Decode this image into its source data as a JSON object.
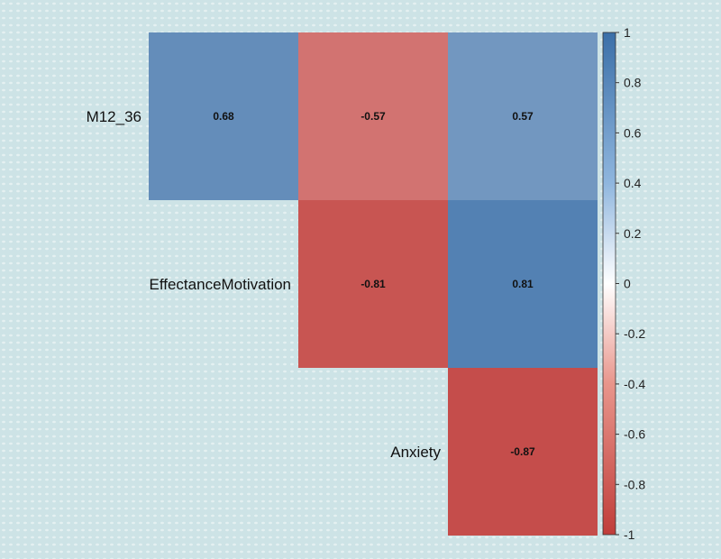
{
  "chart_data": {
    "type": "heatmap",
    "title": "",
    "variables": [
      "M12_36",
      "EffectanceMotivation",
      "Anxiety"
    ],
    "columns": [
      "",
      "",
      ""
    ],
    "layout": "upper-triangle",
    "cells": [
      {
        "row": "M12_36",
        "col": 0,
        "value": 0.68
      },
      {
        "row": "M12_36",
        "col": 1,
        "value": -0.57
      },
      {
        "row": "M12_36",
        "col": 2,
        "value": 0.57
      },
      {
        "row": "EffectanceMotivation",
        "col": 1,
        "value": -0.81
      },
      {
        "row": "EffectanceMotivation",
        "col": 2,
        "value": 0.81
      },
      {
        "row": "Anxiety",
        "col": 2,
        "value": -0.87
      }
    ],
    "colorbar": {
      "range": [
        -1,
        1
      ],
      "ticks": [
        1,
        0.8,
        0.6,
        0.4,
        0.2,
        0,
        -0.2,
        -0.4,
        -0.6,
        -0.8,
        -1
      ],
      "tick_labels": [
        "1",
        "0.8",
        "0.6",
        "0.4",
        "0.2",
        "0",
        "-0.2",
        "-0.4",
        "-0.6",
        "-0.8",
        "-1"
      ],
      "colors": {
        "low": "#c03d3a",
        "mid": "#ffffff",
        "high": "#3b6fa8"
      }
    },
    "grid": false,
    "legend": "right"
  }
}
